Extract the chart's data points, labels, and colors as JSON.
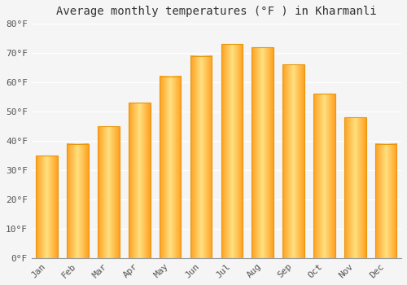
{
  "title": "Average monthly temperatures (°F ) in Kharmanli",
  "months": [
    "Jan",
    "Feb",
    "Mar",
    "Apr",
    "May",
    "Jun",
    "Jul",
    "Aug",
    "Sep",
    "Oct",
    "Nov",
    "Dec"
  ],
  "values": [
    35,
    39,
    45,
    53,
    62,
    69,
    73,
    72,
    66,
    56,
    48,
    39
  ],
  "ylim": [
    0,
    80
  ],
  "yticks": [
    0,
    10,
    20,
    30,
    40,
    50,
    60,
    70,
    80
  ],
  "ytick_labels": [
    "0°F",
    "10°F",
    "20°F",
    "30°F",
    "40°F",
    "50°F",
    "60°F",
    "70°F",
    "80°F"
  ],
  "background_color": "#f5f5f5",
  "grid_color": "#ffffff",
  "title_fontsize": 10,
  "tick_fontsize": 8,
  "bar_color_center": "#FFE080",
  "bar_color_edge": "#FFA020",
  "bar_border_color": "#E8960A"
}
